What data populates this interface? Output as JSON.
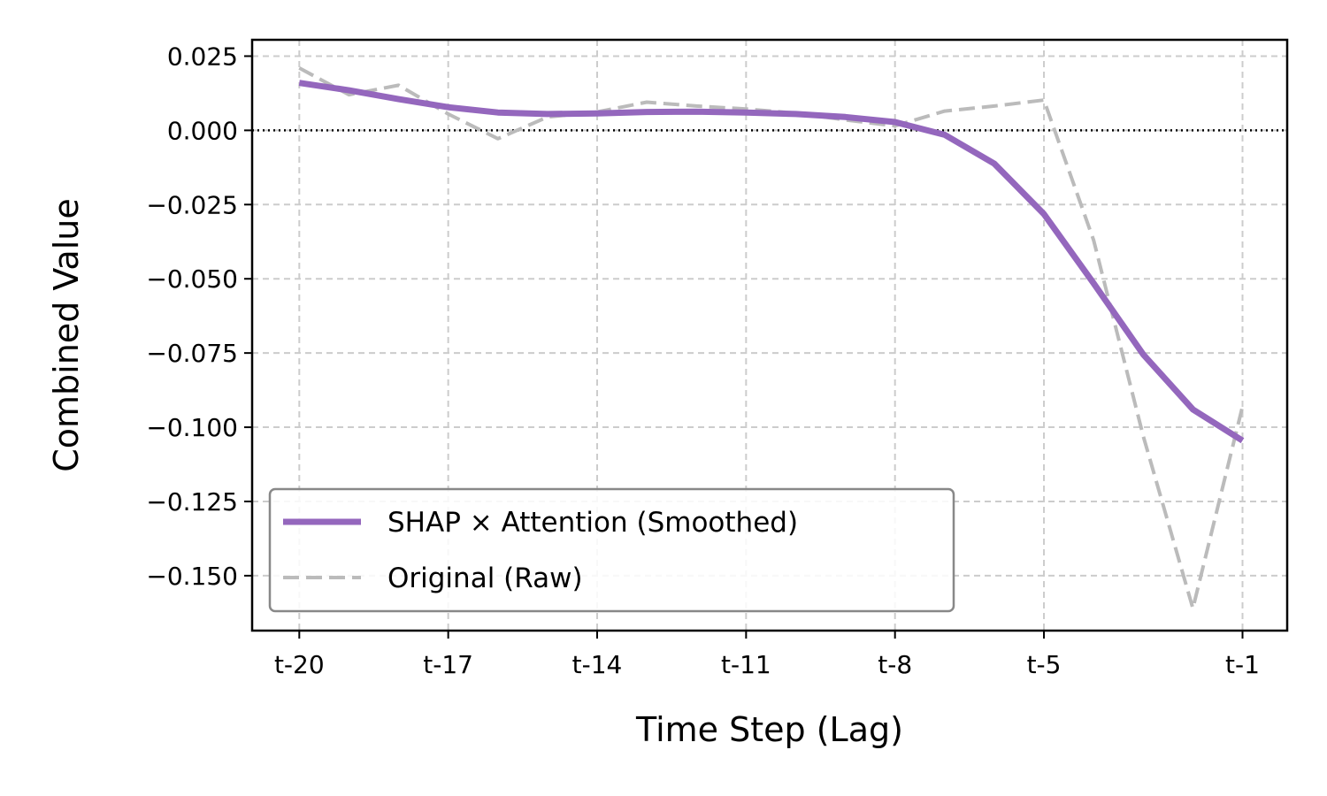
{
  "chart_data": {
    "type": "line",
    "title": "",
    "xlabel": "Time Step (Lag)",
    "ylabel": "Combined Value",
    "x": [
      -20,
      -19,
      -18,
      -17,
      -16,
      -15,
      -14,
      -13,
      -12,
      -11,
      -10,
      -9,
      -8,
      -7,
      -6,
      -5,
      -4,
      -3,
      -2,
      -1
    ],
    "xlim": [
      -20.95,
      -0.1
    ],
    "ylim": [
      -0.1685,
      0.0305
    ],
    "xticks": [
      -20,
      -17,
      -14,
      -11,
      -8,
      -5,
      -1
    ],
    "xtick_labels": [
      "t-20",
      "t-17",
      "t-14",
      "t-11",
      "t-8",
      "t-5",
      "t-1"
    ],
    "yticks": [
      0.025,
      0.0,
      -0.025,
      -0.05,
      -0.075,
      -0.1,
      -0.125,
      -0.15
    ],
    "ytick_labels": [
      "0.025",
      "0.000",
      "−0.025",
      "−0.050",
      "−0.075",
      "−0.100",
      "−0.125",
      "−0.150"
    ],
    "grid": true,
    "zero_line": 0,
    "legend_position": "lower-left",
    "series": [
      {
        "name": "SHAP × Attention (Smoothed)",
        "color": "#9467bd",
        "style": "solid",
        "values": [
          0.016,
          0.0135,
          0.0105,
          0.0078,
          0.006,
          0.0055,
          0.0057,
          0.0062,
          0.0063,
          0.006,
          0.0055,
          0.0045,
          0.0028,
          -0.0015,
          -0.0112,
          -0.0282,
          -0.0515,
          -0.0755,
          -0.094,
          -0.1045
        ]
      },
      {
        "name": "Original (Raw)",
        "color": "#bbbbbb",
        "style": "dashed",
        "values": [
          0.021,
          0.012,
          0.0152,
          0.0055,
          -0.0028,
          0.0045,
          0.0062,
          0.0095,
          0.0082,
          0.0072,
          0.0058,
          0.0035,
          0.0015,
          0.0065,
          0.0082,
          0.0102,
          -0.037,
          -0.103,
          -0.161,
          -0.093
        ]
      }
    ]
  }
}
